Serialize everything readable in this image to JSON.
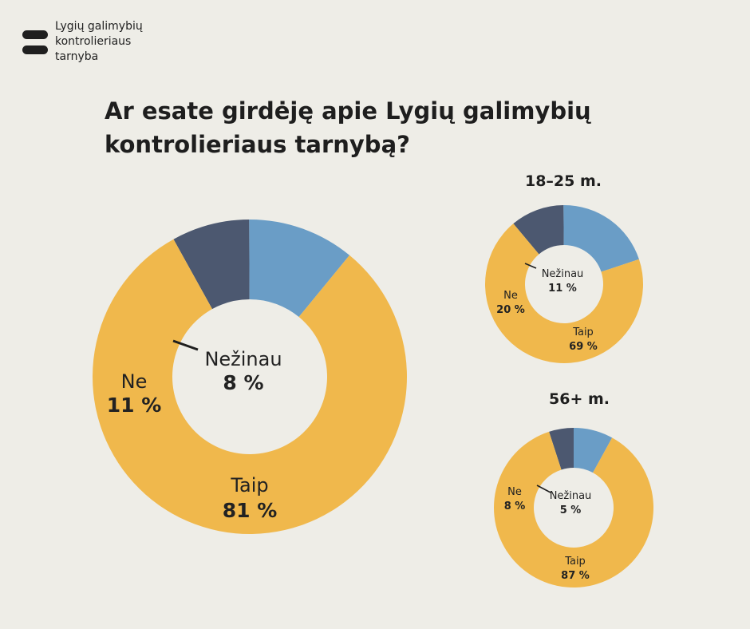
{
  "logo": {
    "lines": [
      "Lygių galimybių",
      "kontrolieriaus",
      "tarnyba"
    ]
  },
  "title_lines": [
    "Ar esate girdėję apie Lygių galimybių",
    "kontrolieriaus tarnybą?"
  ],
  "colors": {
    "taip": "#f0b84c",
    "ne": "#6a9dc6",
    "nezinau": "#4c5870",
    "background": "#eeede7"
  },
  "chart_data": [
    {
      "type": "pie",
      "title": "",
      "categories": [
        "Nežinau",
        "Ne",
        "Taip"
      ],
      "values": [
        8,
        11,
        81
      ],
      "value_labels": [
        "8 %",
        "11 %",
        "81 %"
      ]
    },
    {
      "type": "pie",
      "title": "18–25 m.",
      "categories": [
        "Nežinau",
        "Ne",
        "Taip"
      ],
      "values": [
        11,
        20,
        69
      ],
      "value_labels": [
        "11 %",
        "20 %",
        "69 %"
      ]
    },
    {
      "type": "pie",
      "title": "56+ m.",
      "categories": [
        "Nežinau",
        "Ne",
        "Taip"
      ],
      "values": [
        5,
        8,
        87
      ],
      "value_labels": [
        "5 %",
        "8 %",
        "87 %"
      ]
    }
  ]
}
